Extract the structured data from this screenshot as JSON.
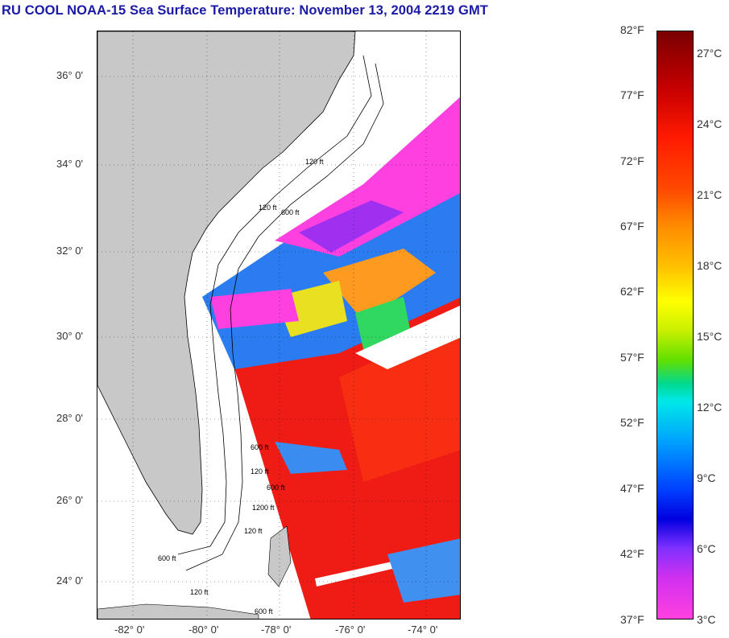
{
  "title": "RU COOL  NOAA-15  Sea Surface Temperature:  November 13, 2004 2219 GMT",
  "map": {
    "lat_labels": [
      "36° 0'",
      "34° 0'",
      "32° 0'",
      "30° 0'",
      "28° 0'",
      "26° 0'",
      "24° 0'"
    ],
    "lon_labels": [
      "-82° 0'",
      "-80° 0'",
      "-78° 0'",
      "-76° 0'",
      "-74° 0'"
    ],
    "contour_labels": [
      "120 ft",
      "600 ft",
      "120 ft",
      "600 ft",
      "120 ft",
      "600 ft",
      "1200 ft",
      "120 ft",
      "600 ft",
      "120 ft",
      "600 ft"
    ],
    "colors": {
      "land": "#c8c8c8",
      "water_missing": "#ffffff",
      "warm": "#f01818",
      "cold": "#ff40e0"
    }
  },
  "colorbar": {
    "fahrenheit_labels": [
      "82°F",
      "77°F",
      "72°F",
      "67°F",
      "62°F",
      "57°F",
      "52°F",
      "47°F",
      "42°F",
      "37°F"
    ],
    "celsius_labels": [
      "27°C",
      "24°C",
      "21°C",
      "18°C",
      "15°C",
      "12°C",
      "9°C",
      "6°C",
      "3°C"
    ]
  }
}
